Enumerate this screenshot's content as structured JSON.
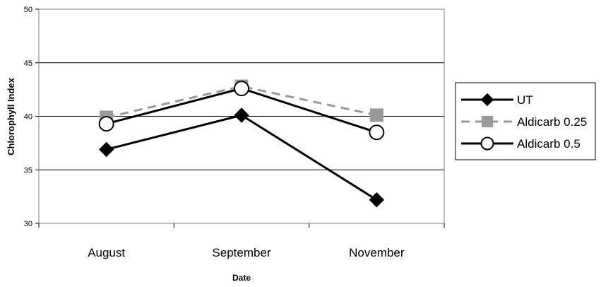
{
  "chart_data": {
    "type": "line",
    "title": "",
    "xlabel": "Date",
    "ylabel": "Chlorophyll Index",
    "categories": [
      "August",
      "September",
      "November"
    ],
    "ylim": [
      30,
      50
    ],
    "yticks": [
      "30",
      "35",
      "40",
      "45",
      "50"
    ],
    "grid": true,
    "legend": "right",
    "series": [
      {
        "name": "UT",
        "values": [
          36.9,
          40.1,
          32.2
        ],
        "color": "#000000",
        "marker": "diamond",
        "dash": "solid"
      },
      {
        "name": "Aldicarb 0.25",
        "values": [
          39.9,
          42.8,
          40.1
        ],
        "color": "#999999",
        "marker": "square",
        "dash": "dashed"
      },
      {
        "name": "Aldicarb 0.5",
        "values": [
          39.3,
          42.6,
          38.5
        ],
        "color": "#000000",
        "marker": "circle",
        "dash": "solid"
      }
    ]
  }
}
